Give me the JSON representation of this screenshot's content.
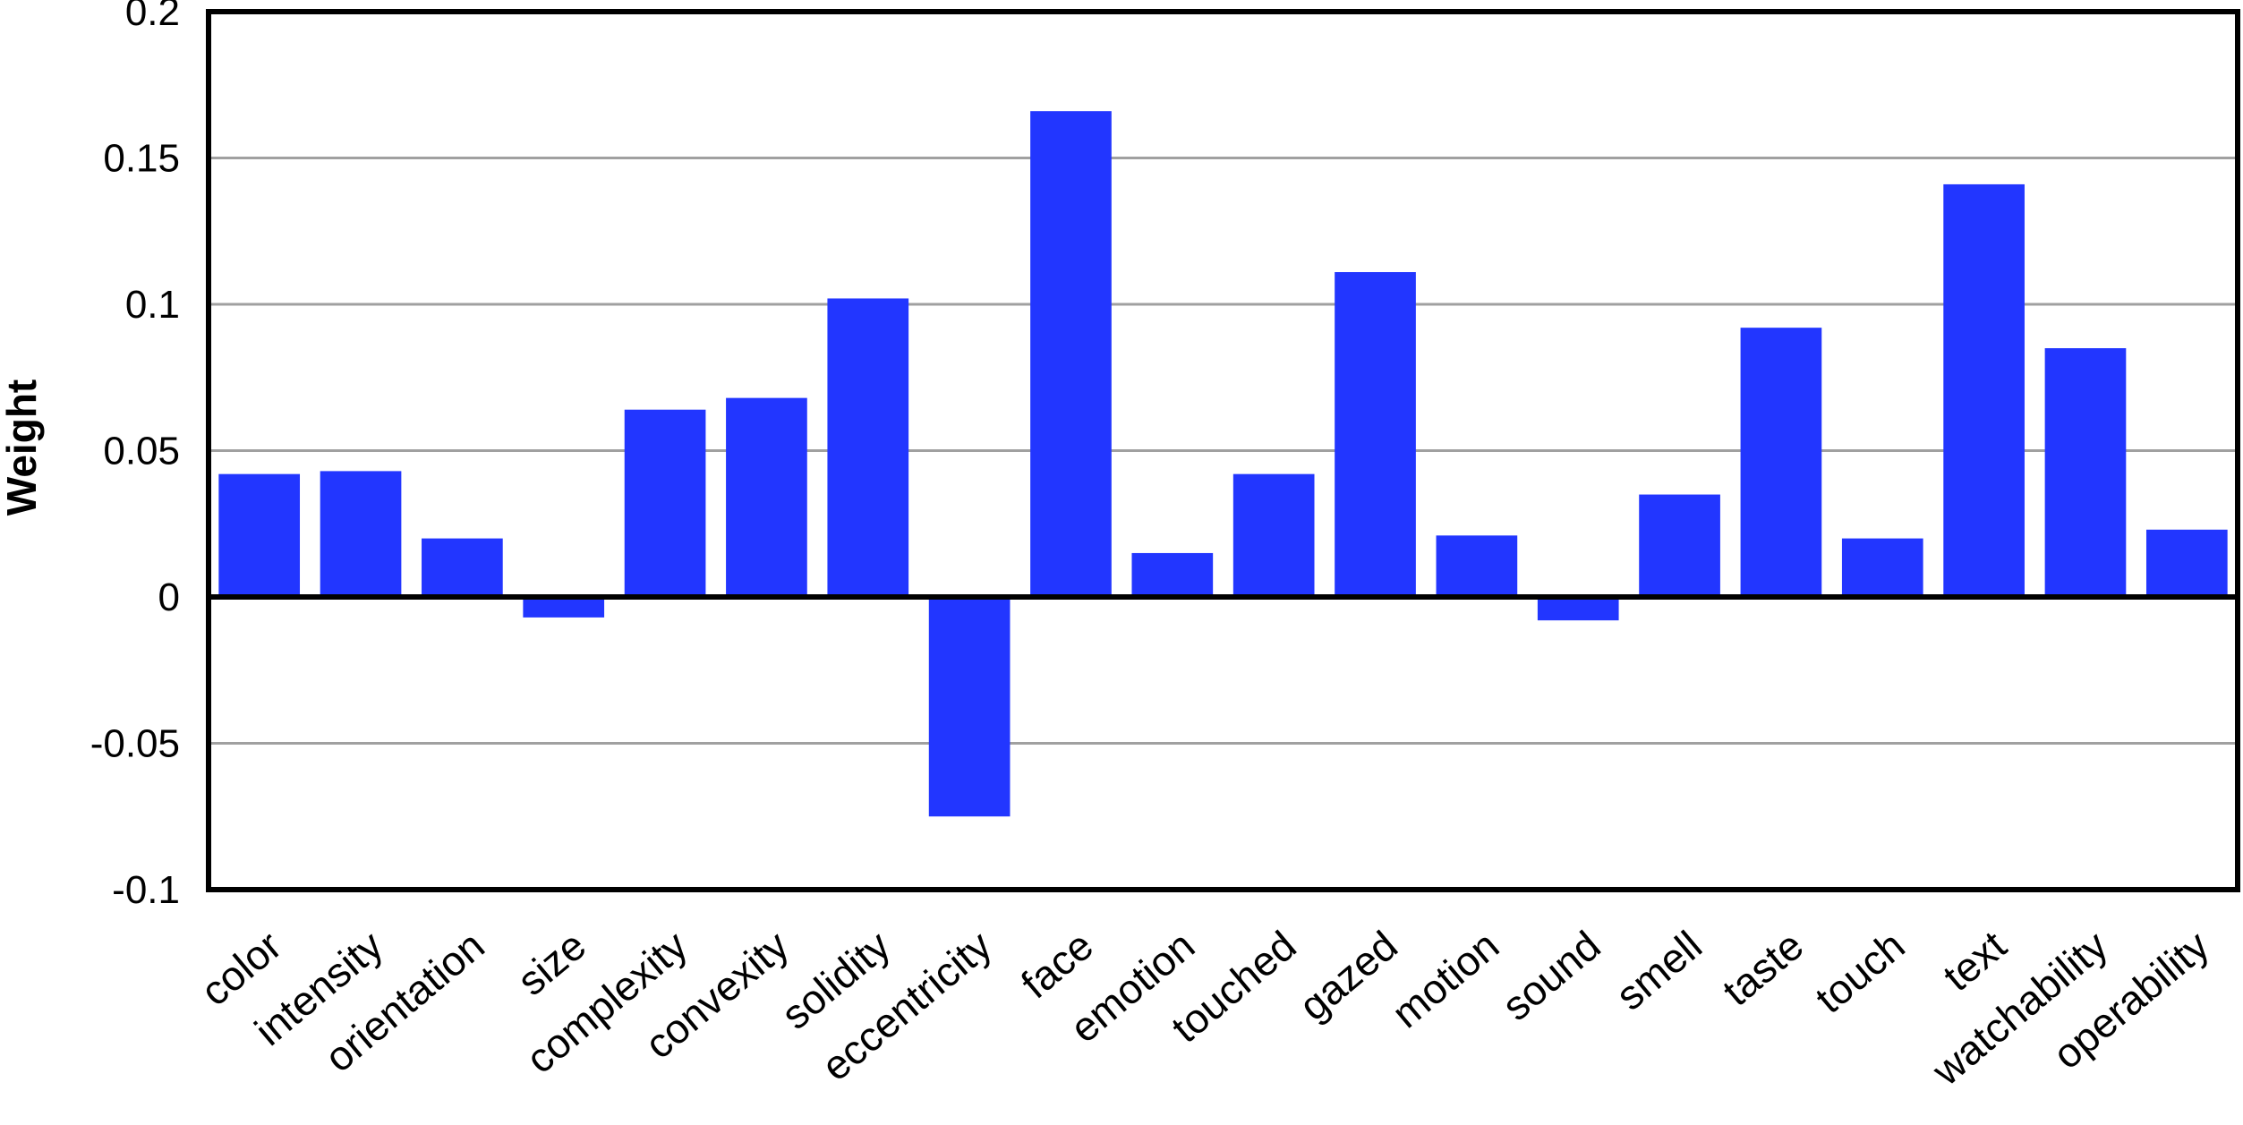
{
  "chart_data": {
    "type": "bar",
    "title": "",
    "xlabel": "",
    "ylabel": "Weight",
    "ylim": [
      -0.1,
      0.2
    ],
    "yticks": [
      0.2,
      0.15,
      0.1,
      0.05,
      0,
      -0.05,
      -0.1
    ],
    "ytick_labels": [
      "0.2",
      "0.15",
      "0.1",
      "0.05",
      "0",
      "-0.05",
      "-0.1"
    ],
    "grid": true,
    "bar_color": "#2236FF",
    "categories": [
      "color",
      "intensity",
      "orientation",
      "size",
      "complexity",
      "convexity",
      "solidity",
      "eccentricity",
      "face",
      "emotion",
      "touched",
      "gazed",
      "motion",
      "sound",
      "smell",
      "taste",
      "touch",
      "text",
      "watchability",
      "operability"
    ],
    "values": [
      0.042,
      0.043,
      0.02,
      -0.007,
      0.064,
      0.068,
      0.102,
      -0.075,
      0.166,
      0.015,
      0.042,
      0.111,
      0.021,
      -0.008,
      0.035,
      0.092,
      0.02,
      0.141,
      0.085,
      0.023
    ]
  }
}
